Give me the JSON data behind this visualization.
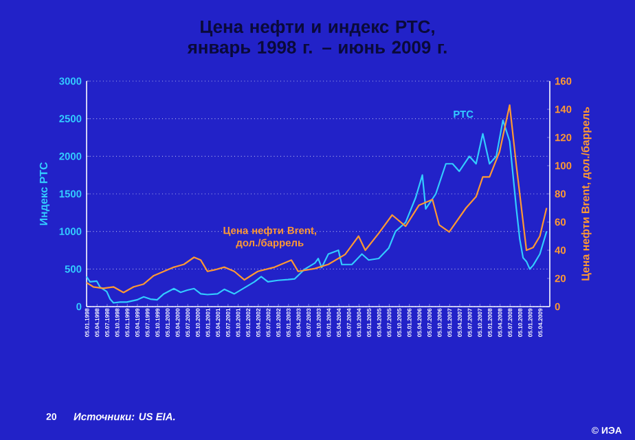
{
  "chart_data": {
    "type": "line",
    "title": "Цена нефти и индекс РТС,\nянварь 1998 г. – июнь 2009 г.",
    "ylabel": "Индекс РТС",
    "y2label": "Цена нефти Brent, дол./баррель",
    "xlim": [
      "1998-01-01",
      "2009-06-30"
    ],
    "xticks": [
      {
        "value": "1998-01-05",
        "label": "05.01.1998"
      },
      {
        "value": "1998-04-05",
        "label": "05.04.1998"
      },
      {
        "value": "1998-07-05",
        "label": "05.07.1998"
      },
      {
        "value": "1998-10-05",
        "label": "05.10.1998"
      },
      {
        "value": "1999-01-05",
        "label": "05.01.1999"
      },
      {
        "value": "1999-04-05",
        "label": "05.04.1999"
      },
      {
        "value": "1999-07-05",
        "label": "05.07.1999"
      },
      {
        "value": "1999-10-05",
        "label": "05.10.1999"
      },
      {
        "value": "2000-01-05",
        "label": "05.01.2000"
      },
      {
        "value": "2000-04-05",
        "label": "05.04.2000"
      },
      {
        "value": "2000-07-05",
        "label": "05.07.2000"
      },
      {
        "value": "2000-10-05",
        "label": "05.10.2000"
      },
      {
        "value": "2001-01-05",
        "label": "05.01.2001"
      },
      {
        "value": "2001-04-05",
        "label": "05.04.2001"
      },
      {
        "value": "2001-07-05",
        "label": "05.07.2001"
      },
      {
        "value": "2001-10-05",
        "label": "05.10.2001"
      },
      {
        "value": "2002-01-05",
        "label": "05.01.2002"
      },
      {
        "value": "2002-04-05",
        "label": "05.04.2002"
      },
      {
        "value": "2002-07-05",
        "label": "05.07.2002"
      },
      {
        "value": "2002-10-05",
        "label": "05.10.2002"
      },
      {
        "value": "2003-01-05",
        "label": "05.01.2003"
      },
      {
        "value": "2003-04-05",
        "label": "05.04.2003"
      },
      {
        "value": "2003-07-05",
        "label": "05.07.2003"
      },
      {
        "value": "2003-10-05",
        "label": "05.10.2003"
      },
      {
        "value": "2004-01-05",
        "label": "05.01.2004"
      },
      {
        "value": "2004-04-05",
        "label": "05.04.2004"
      },
      {
        "value": "2004-07-05",
        "label": "05.07.2004"
      },
      {
        "value": "2004-10-05",
        "label": "05.10.2004"
      },
      {
        "value": "2005-01-05",
        "label": "05.01.2005"
      },
      {
        "value": "2005-04-05",
        "label": "05.04.2005"
      },
      {
        "value": "2005-07-05",
        "label": "05.07.2005"
      },
      {
        "value": "2005-10-05",
        "label": "05.10.2005"
      },
      {
        "value": "2006-01-05",
        "label": "05.01.2006"
      },
      {
        "value": "2006-04-05",
        "label": "05.04.2006"
      },
      {
        "value": "2006-07-05",
        "label": "05.07.2006"
      },
      {
        "value": "2006-10-05",
        "label": "05.10.2006"
      },
      {
        "value": "2007-01-05",
        "label": "05.01.2007"
      },
      {
        "value": "2007-04-05",
        "label": "05.04.2007"
      },
      {
        "value": "2007-07-05",
        "label": "05.07.2007"
      },
      {
        "value": "2007-10-05",
        "label": "05.10.2007"
      },
      {
        "value": "2008-01-05",
        "label": "05.01.2008"
      },
      {
        "value": "2008-04-05",
        "label": "05.04.2008"
      },
      {
        "value": "2008-07-05",
        "label": "05.07.2008"
      },
      {
        "value": "2008-10-05",
        "label": "05.10.2008"
      },
      {
        "value": "2009-01-05",
        "label": "05.01.2009"
      },
      {
        "value": "2009-04-05",
        "label": "05.04.2009"
      }
    ],
    "ylim": [
      0,
      3000
    ],
    "yticks": [
      0,
      500,
      1000,
      1500,
      2000,
      2500,
      3000
    ],
    "y2lim": [
      0,
      160
    ],
    "y2ticks": [
      0,
      20,
      40,
      60,
      80,
      100,
      120,
      140,
      160
    ],
    "grid": "y",
    "series": [
      {
        "name": "РТС",
        "color": "#33ccff",
        "x": [
          "1998-01",
          "1998-02",
          "1998-04",
          "1998-05",
          "1998-07",
          "1998-08",
          "1998-09",
          "1998-11",
          "1999-01",
          "1999-04",
          "1999-06",
          "1999-08",
          "1999-10",
          "1999-12",
          "2000-03",
          "2000-05",
          "2000-07",
          "2000-09",
          "2000-11",
          "2001-01",
          "2001-04",
          "2001-06",
          "2001-09",
          "2001-12",
          "2002-03",
          "2002-05",
          "2002-07",
          "2002-10",
          "2003-01",
          "2003-03",
          "2003-06",
          "2003-09",
          "2003-10",
          "2003-11",
          "2004-01",
          "2004-04",
          "2004-05",
          "2004-08",
          "2004-11",
          "2005-01",
          "2005-04",
          "2005-07",
          "2005-09",
          "2005-12",
          "2006-03",
          "2006-05",
          "2006-06",
          "2006-09",
          "2006-12",
          "2007-02",
          "2007-04",
          "2007-07",
          "2007-09",
          "2007-11",
          "2008-01",
          "2008-03",
          "2008-05",
          "2008-07",
          "2008-09",
          "2008-10",
          "2008-11",
          "2008-12",
          "2009-01",
          "2009-02",
          "2009-04",
          "2009-06"
        ],
        "values": [
          400,
          330,
          340,
          260,
          200,
          100,
          50,
          60,
          60,
          90,
          130,
          100,
          90,
          170,
          240,
          190,
          220,
          240,
          170,
          160,
          170,
          230,
          170,
          250,
          330,
          400,
          330,
          350,
          360,
          370,
          500,
          580,
          640,
          520,
          700,
          750,
          560,
          560,
          700,
          620,
          640,
          780,
          1000,
          1120,
          1450,
          1750,
          1300,
          1500,
          1900,
          1900,
          1800,
          2000,
          1900,
          2300,
          1900,
          2000,
          2480,
          2200,
          1300,
          900,
          650,
          600,
          500,
          550,
          700,
          1000
        ]
      },
      {
        "name": "Цена нефти Brent, дол./баррель",
        "color": "#ff9933",
        "axis": "y2",
        "x": [
          "1998-01",
          "1998-03",
          "1998-06",
          "1998-09",
          "1998-12",
          "1999-03",
          "1999-06",
          "1999-09",
          "1999-12",
          "2000-03",
          "2000-06",
          "2000-09",
          "2000-11",
          "2001-01",
          "2001-03",
          "2001-06",
          "2001-09",
          "2001-12",
          "2002-04",
          "2002-09",
          "2003-02",
          "2003-04",
          "2003-09",
          "2004-01",
          "2004-06",
          "2004-10",
          "2004-12",
          "2005-04",
          "2005-08",
          "2005-12",
          "2006-04",
          "2006-08",
          "2006-10",
          "2007-01",
          "2007-06",
          "2007-09",
          "2007-11",
          "2008-01",
          "2008-04",
          "2008-07",
          "2008-09",
          "2008-12",
          "2009-02",
          "2009-04",
          "2009-06"
        ],
        "values": [
          17,
          14,
          13,
          14,
          10,
          14,
          16,
          22,
          25,
          28,
          30,
          35,
          33,
          25,
          26,
          28,
          25,
          19,
          25,
          28,
          33,
          25,
          27,
          30,
          37,
          50,
          40,
          52,
          65,
          57,
          72,
          76,
          58,
          53,
          70,
          78,
          92,
          92,
          110,
          143,
          100,
          40,
          42,
          50,
          70
        ]
      }
    ],
    "annotations": [
      "20",
      "Источники: US EIA.",
      "© ИЭА"
    ]
  }
}
